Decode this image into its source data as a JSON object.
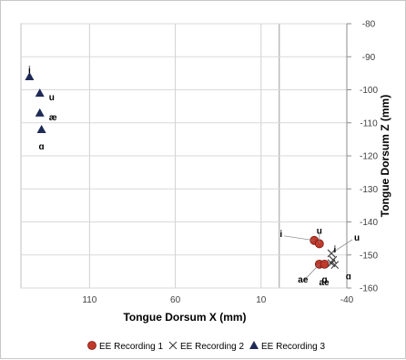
{
  "chart_data": {
    "type": "scatter",
    "xlabel": "Tongue Dorsum X (mm)",
    "ylabel": "Tongue Dorsum Z (mm)",
    "x_reversed": true,
    "xlim": [
      150,
      -40
    ],
    "ylim": [
      -160,
      -80
    ],
    "x_ticks": [
      110,
      60,
      10,
      -40
    ],
    "x_tick_labels": [
      "110",
      "60",
      "10",
      "-40"
    ],
    "y_ticks": [
      -80,
      -90,
      -100,
      -110,
      -120,
      -130,
      -140,
      -150,
      -160
    ],
    "y_tick_labels": [
      "-80",
      "-90",
      "-100",
      "-110",
      "-120",
      "-130",
      "-140",
      "-150",
      "-160"
    ],
    "y_axis_position": "right",
    "grid": true,
    "legend_position": "bottom",
    "series": [
      {
        "name": "EE Recording 1",
        "marker": "circle",
        "color": "#c0392b",
        "points": [
          {
            "x": -21,
            "y": -145.6,
            "label": "i"
          },
          {
            "x": -24,
            "y": -146.6,
            "label": "u"
          },
          {
            "x": -24,
            "y": -152.8,
            "label": "ae"
          },
          {
            "x": -27,
            "y": -152.8,
            "label": "ɑ"
          }
        ]
      },
      {
        "name": "EE Recording 2",
        "marker": "x",
        "color": "#404040",
        "points": [
          {
            "x": -31,
            "y": -149.5,
            "label": "u"
          },
          {
            "x": -32,
            "y": -151.5,
            "label": "i"
          },
          {
            "x": -31,
            "y": -152.5,
            "label": "ae"
          },
          {
            "x": -33,
            "y": -153.0,
            "label": "ɑ"
          }
        ]
      },
      {
        "name": "EE Recording 3",
        "marker": "triangle",
        "color": "#1f2a56",
        "points": [
          {
            "x": 145,
            "y": -96.0,
            "label": "i"
          },
          {
            "x": 139,
            "y": -101.0,
            "label": "u"
          },
          {
            "x": 139,
            "y": -107.0,
            "label": "æ"
          },
          {
            "x": 138,
            "y": -112.0,
            "label": "ɑ"
          }
        ]
      }
    ],
    "annotations": [
      {
        "text": "i",
        "series": 0,
        "point": 0,
        "side": "left"
      },
      {
        "text": "u",
        "series": 0,
        "point": 1,
        "side": "above"
      },
      {
        "text": "ae",
        "series": 0,
        "point": 2,
        "side": "below-left"
      },
      {
        "text": "ɑ",
        "series": 0,
        "point": 3,
        "side": "below"
      },
      {
        "text": "u",
        "series": 1,
        "point": 0,
        "side": "right"
      },
      {
        "text": "i",
        "series": 1,
        "point": 1,
        "side": "above"
      },
      {
        "text": "ae",
        "series": 1,
        "point": 2,
        "side": "below"
      },
      {
        "text": "ɑ",
        "series": 1,
        "point": 3,
        "side": "right"
      },
      {
        "text": "i",
        "series": 2,
        "point": 0,
        "side": "above"
      },
      {
        "text": "u",
        "series": 2,
        "point": 1,
        "side": "right"
      },
      {
        "text": "æ",
        "series": 2,
        "point": 2,
        "side": "right"
      },
      {
        "text": "ɑ",
        "series": 2,
        "point": 3,
        "side": "below"
      }
    ]
  }
}
